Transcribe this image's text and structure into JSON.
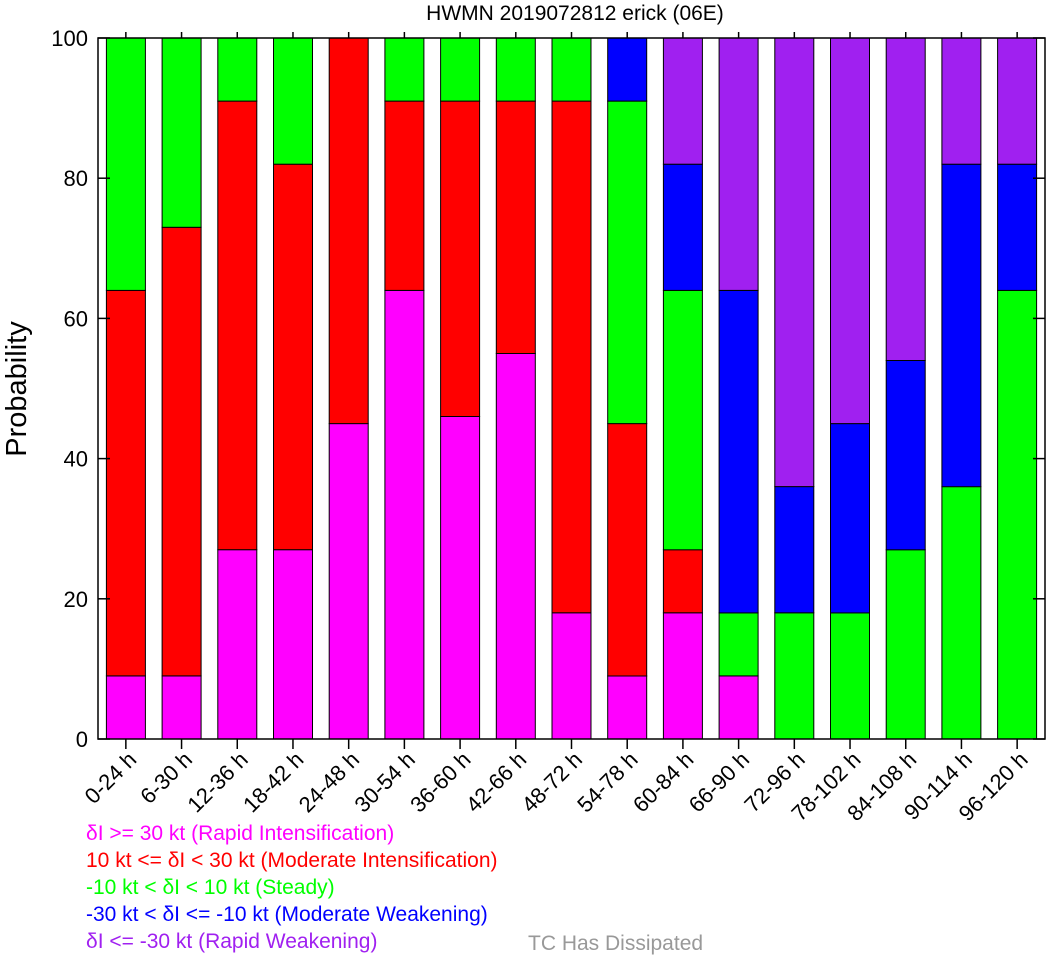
{
  "chart_data": {
    "type": "bar",
    "stacked": true,
    "title": "HWMN 2019072812 erick (06E)",
    "xlabel": "",
    "ylabel": "Probability",
    "ylim": [
      0,
      100
    ],
    "yticks": [
      0,
      20,
      40,
      60,
      80,
      100
    ],
    "grid": false,
    "categories": [
      "0-24 h",
      "6-30 h",
      "12-36 h",
      "18-42 h",
      "24-48 h",
      "30-54 h",
      "36-60 h",
      "42-66 h",
      "48-72 h",
      "54-78 h",
      "60-84 h",
      "66-90 h",
      "72-96 h",
      "78-102 h",
      "84-108 h",
      "90-114 h",
      "96-120 h"
    ],
    "series": [
      {
        "name": "δI >= 30 kt (Rapid Intensification)",
        "color": "#ff00ff",
        "values": [
          9,
          9,
          27,
          27,
          45,
          64,
          46,
          55,
          18,
          9,
          18,
          9,
          0,
          0,
          0,
          0,
          0
        ]
      },
      {
        "name": "10 kt <= δI < 30 kt (Moderate Intensification)",
        "color": "#ff0000",
        "values": [
          55,
          64,
          64,
          55,
          55,
          27,
          45,
          36,
          73,
          36,
          9,
          0,
          0,
          0,
          0,
          0,
          0
        ]
      },
      {
        "name": "-10 kt < δI < 10 kt (Steady)",
        "color": "#00ff00",
        "values": [
          36,
          27,
          9,
          18,
          0,
          9,
          9,
          9,
          9,
          46,
          37,
          9,
          18,
          18,
          27,
          36,
          64
        ]
      },
      {
        "name": "-30 kt < δI <= -10 kt (Moderate Weakening)",
        "color": "#0000ff",
        "values": [
          0,
          0,
          0,
          0,
          0,
          0,
          0,
          0,
          0,
          9,
          18,
          46,
          18,
          27,
          27,
          46,
          18
        ]
      },
      {
        "name": "δI <= -30 kt (Rapid Weakening)",
        "color": "#a020f0",
        "values": [
          0,
          0,
          0,
          0,
          0,
          0,
          0,
          0,
          0,
          0,
          18,
          36,
          64,
          55,
          46,
          18,
          18
        ]
      }
    ],
    "extra_legend": {
      "label": "TC Has Dissipated",
      "color": "#999999"
    }
  }
}
